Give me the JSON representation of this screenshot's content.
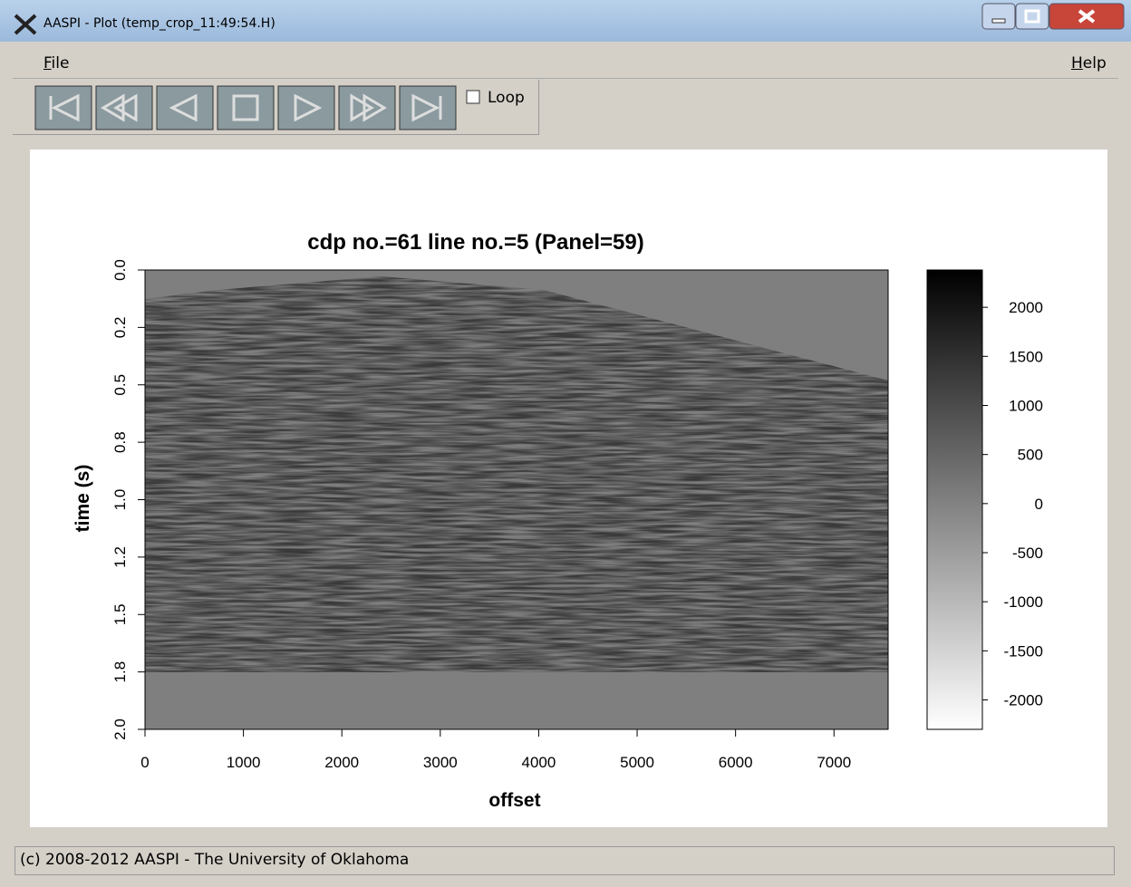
{
  "window": {
    "title": "AASPI - Plot (temp_crop_11:49:54.H)",
    "menu": [
      "File",
      "Help"
    ],
    "loop": "Loop",
    "status": "(c) 2008-2012 AASPI - The University of Oklahoma"
  },
  "chart_data": {
    "type": "heatmap",
    "title": "cdp no.=61 line no.=5 (Panel=59)",
    "xlabel": "offset",
    "ylabel": "time (s)",
    "xlim": [
      0,
      7550
    ],
    "xticks": [
      0,
      1000,
      2000,
      3000,
      4000,
      5000,
      6000,
      7000
    ],
    "ylim": [
      0,
      2
    ],
    "yticks": [
      {
        "value": 0,
        "label": "0.0"
      },
      {
        "value": 0.25,
        "label": "0.2"
      },
      0.5,
      {
        "value": 0.75,
        "label": "0.8"
      },
      {
        "value": 1,
        "label": "1.0"
      },
      {
        "value": 1.25,
        "label": "1.2"
      },
      1.5,
      {
        "value": 1.75,
        "label": "1.8"
      },
      {
        "value": 2,
        "label": "2.0"
      }
    ],
    "y_inverted": true,
    "colorbar": {
      "lim": [
        -2300,
        2380
      ],
      "ticks": [
        2000,
        1500,
        1000,
        500,
        0,
        -500,
        -1000,
        -1500,
        -2000
      ]
    }
  }
}
